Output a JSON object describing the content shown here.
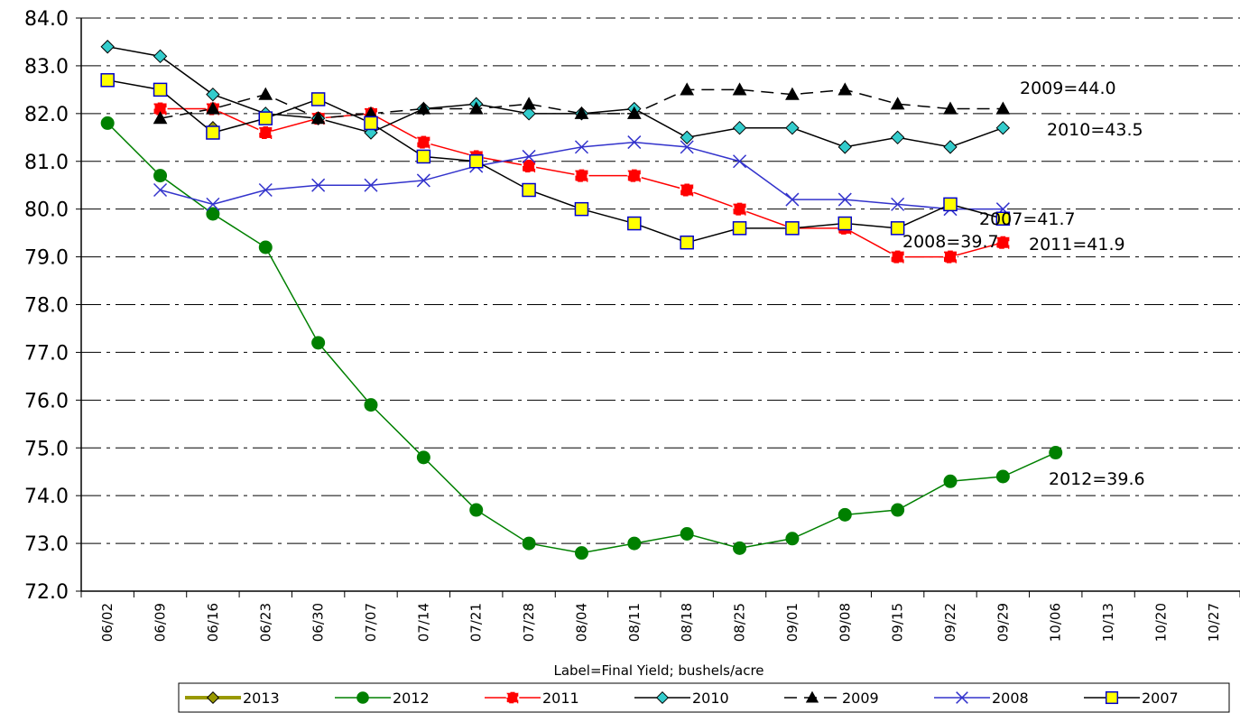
{
  "chart_data": {
    "type": "line",
    "x_label": "Label=Final Yield; bushels/acre",
    "categories": [
      "06/02",
      "06/09",
      "06/16",
      "06/23",
      "06/30",
      "07/07",
      "07/14",
      "07/21",
      "07/28",
      "08/04",
      "08/11",
      "08/18",
      "08/25",
      "09/01",
      "09/08",
      "09/15",
      "09/22",
      "09/29",
      "10/06",
      "10/13",
      "10/20",
      "10/27"
    ],
    "ylim": [
      72,
      84
    ],
    "yticks": [
      {
        "value": 72,
        "label": "72.0"
      },
      {
        "value": 73,
        "label": "73.0"
      },
      {
        "value": 74,
        "label": "74.0"
      },
      {
        "value": 75,
        "label": "75.0"
      },
      {
        "value": 76,
        "label": "76.0"
      },
      {
        "value": 77,
        "label": "77.0"
      },
      {
        "value": 78,
        "label": "78.0"
      },
      {
        "value": 79,
        "label": "79.0"
      },
      {
        "value": 80,
        "label": "80.0"
      },
      {
        "value": 81,
        "label": "81.0"
      },
      {
        "value": 82,
        "label": "82.0"
      },
      {
        "value": 83,
        "label": "83.0"
      },
      {
        "value": 84,
        "label": "84.0"
      }
    ],
    "grid": true,
    "legend": "bottom",
    "series": [
      {
        "name": "2013",
        "color": "#999900",
        "marker": "diamond",
        "marker_fill": "#999900",
        "line_style": "solid",
        "values": [
          null,
          null,
          81.7,
          null,
          null,
          null,
          null,
          null,
          null,
          null,
          null,
          null,
          null,
          null,
          null,
          null,
          null,
          null,
          null,
          null,
          null,
          null
        ]
      },
      {
        "name": "2012",
        "color": "#008000",
        "marker": "circle",
        "marker_fill": "#008000",
        "line_style": "solid",
        "values": [
          81.8,
          80.7,
          79.9,
          79.2,
          77.2,
          75.9,
          74.8,
          73.7,
          73.0,
          72.8,
          73.0,
          73.2,
          72.9,
          73.1,
          73.6,
          73.7,
          74.3,
          74.4,
          74.9,
          null,
          null,
          null
        ]
      },
      {
        "name": "2011",
        "color": "#ff0000",
        "marker": "cross-square",
        "marker_fill": "#ff0000",
        "line_style": "solid",
        "values": [
          null,
          82.1,
          82.1,
          81.6,
          81.9,
          82.0,
          81.4,
          81.1,
          80.9,
          80.7,
          80.7,
          80.4,
          80.0,
          79.6,
          79.6,
          79.0,
          79.0,
          79.3,
          null,
          null,
          null,
          null
        ]
      },
      {
        "name": "2010",
        "color": "#000000",
        "marker": "diamond",
        "marker_fill": "#33cccc",
        "line_style": "solid",
        "values": [
          83.4,
          83.2,
          82.4,
          82.0,
          81.9,
          81.6,
          82.1,
          82.2,
          82.0,
          82.0,
          82.1,
          81.5,
          81.7,
          81.7,
          81.3,
          81.5,
          81.3,
          81.7,
          null,
          null,
          null,
          null
        ]
      },
      {
        "name": "2009",
        "color": "#000000",
        "marker": "triangle",
        "marker_fill": "#000000",
        "line_style": "dashed",
        "values": [
          null,
          81.9,
          82.1,
          82.4,
          81.9,
          82.0,
          82.1,
          82.1,
          82.2,
          82.0,
          82.0,
          82.5,
          82.5,
          82.4,
          82.5,
          82.2,
          82.1,
          82.1,
          null,
          null,
          null,
          null
        ]
      },
      {
        "name": "2008",
        "color": "#3333cc",
        "marker": "x",
        "marker_fill": "none",
        "line_style": "solid",
        "values": [
          null,
          80.4,
          80.1,
          80.4,
          80.5,
          80.5,
          80.6,
          80.9,
          81.1,
          81.3,
          81.4,
          81.3,
          81.0,
          80.2,
          80.2,
          80.1,
          80.0,
          80.0,
          null,
          null,
          null,
          null
        ]
      },
      {
        "name": "2007",
        "color": "#000000",
        "marker": "square",
        "marker_fill": "#ffff00",
        "marker_edge": "#0000cc",
        "line_style": "solid",
        "values": [
          82.7,
          82.5,
          81.6,
          81.9,
          82.3,
          81.8,
          81.1,
          81.0,
          80.4,
          80.0,
          79.7,
          79.3,
          79.6,
          79.6,
          79.7,
          79.6,
          80.1,
          79.8,
          null,
          null,
          null,
          null
        ]
      }
    ],
    "annotations": [
      "2009=44.0",
      "2010=43.5",
      "2007=41.7",
      "2008=39.7",
      "2011=41.9",
      "2012=39.6"
    ]
  }
}
